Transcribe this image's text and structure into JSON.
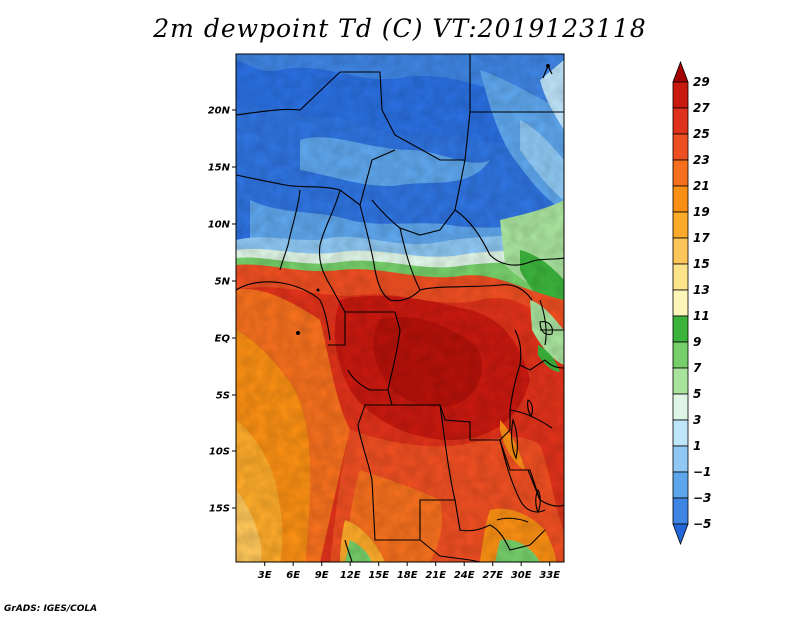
{
  "title": "2m dewpoint Td (C) VT:2019123118",
  "credit": "GrADS: IGES/COLA",
  "map": {
    "lat_ticks": [
      "20N",
      "15N",
      "10N",
      "5N",
      "EQ",
      "5S",
      "10S",
      "15S"
    ],
    "lon_ticks": [
      "3E",
      "6E",
      "9E",
      "12E",
      "15E",
      "18E",
      "21E",
      "24E",
      "27E",
      "30E",
      "33E"
    ]
  },
  "colorbar": {
    "labels": [
      "29",
      "27",
      "25",
      "23",
      "21",
      "19",
      "17",
      "15",
      "13",
      "11",
      "9",
      "7",
      "5",
      "3",
      "1",
      "−1",
      "−3",
      "−5"
    ],
    "colors": [
      "#a50000",
      "#c8190f",
      "#e0321a",
      "#ee4f22",
      "#f5701e",
      "#f98f14",
      "#fcaa2a",
      "#fdc65a",
      "#fde38a",
      "#fdf6b8",
      "#3cb43c",
      "#76cf6a",
      "#a9e39e",
      "#dff6e6",
      "#bfe5fb",
      "#8fc8f3",
      "#5ea6ec",
      "#3f85e3",
      "#2366d9"
    ]
  }
}
